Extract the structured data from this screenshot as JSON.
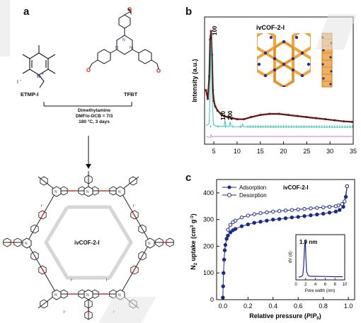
{
  "panels": {
    "a": {
      "letter": "a",
      "reactant_left": "ETMP-I",
      "reactant_right": "TFBT",
      "iodide": "I",
      "conditions": [
        "Dimethylamine",
        "DMF/o-DCB = 7/3",
        "180 °C, 3 days"
      ],
      "product_label": "ivCOF-2-I"
    },
    "b": {
      "letter": "b",
      "inset_title": "ivCOF-2-I",
      "peak_labels": [
        "100",
        "110",
        "200"
      ]
    },
    "c": {
      "letter": "c",
      "inset_title": "ivCOF-2-I",
      "inset_annotation": "1.9 nm"
    }
  },
  "chart_data": [
    {
      "type": "line",
      "panel": "b",
      "xlabel": "",
      "ylabel": "Intensity (a.u.)",
      "xlim": [
        3,
        35
      ],
      "xticks": [
        5,
        10,
        15,
        20,
        25,
        30,
        35
      ],
      "grid": false,
      "series": [
        {
          "color": "#8b1a1a",
          "x": [
            3.3,
            3.7,
            4.0,
            4.2,
            4.4,
            4.6,
            4.8,
            5.0,
            5.3,
            5.8,
            6.5,
            7.2,
            8.0,
            9.0,
            10.0,
            11.5,
            13.0,
            15.0,
            17.0,
            19.0,
            21.0,
            23.0,
            25.0,
            27.0,
            29.0,
            31.0,
            33.0,
            34.8
          ],
          "y": [
            0.45,
            0.37,
            0.58,
            0.92,
            1.0,
            0.78,
            0.45,
            0.35,
            0.3,
            0.26,
            0.23,
            0.21,
            0.2,
            0.19,
            0.18,
            0.18,
            0.2,
            0.22,
            0.23,
            0.23,
            0.22,
            0.21,
            0.2,
            0.19,
            0.18,
            0.17,
            0.16,
            0.155
          ]
        },
        {
          "color": "#222222",
          "x": [
            3.3,
            3.7,
            4.0,
            4.2,
            4.4,
            4.6,
            4.8,
            5.0,
            5.3,
            5.8,
            6.5,
            7.2,
            8.0,
            9.0,
            10.0,
            11.5,
            13.0,
            15.0,
            17.0,
            19.0,
            21.0,
            23.0,
            25.0,
            27.0,
            29.0,
            31.0,
            33.0,
            34.8
          ],
          "y": [
            0.44,
            0.36,
            0.56,
            0.9,
            0.99,
            0.77,
            0.44,
            0.34,
            0.29,
            0.255,
            0.225,
            0.205,
            0.195,
            0.185,
            0.178,
            0.178,
            0.195,
            0.215,
            0.225,
            0.225,
            0.215,
            0.205,
            0.195,
            0.185,
            0.178,
            0.168,
            0.158,
            0.152
          ]
        },
        {
          "color": "#2bbcb0",
          "x": [
            3.3,
            4.0,
            4.2,
            4.4,
            4.6,
            4.9,
            5.5,
            6.5,
            7.2,
            7.4,
            7.6,
            8.3,
            8.5,
            8.7,
            10.0,
            11.0,
            11.2,
            11.4,
            13.0,
            16.0,
            20.0,
            25.0,
            30.0,
            34.8
          ],
          "y": [
            0.12,
            0.14,
            0.5,
            0.92,
            0.45,
            0.13,
            0.115,
            0.112,
            0.112,
            0.17,
            0.112,
            0.112,
            0.155,
            0.112,
            0.11,
            0.11,
            0.135,
            0.11,
            0.109,
            0.108,
            0.107,
            0.107,
            0.106,
            0.106
          ]
        },
        {
          "color": "#c080d0",
          "x": [
            3.3,
            4.2,
            4.4,
            4.6,
            5.0,
            10.0,
            20.0,
            34.8
          ],
          "y": [
            0.02,
            0.01,
            0.035,
            0.015,
            0.02,
            0.02,
            0.02,
            0.02
          ]
        }
      ]
    },
    {
      "type": "line",
      "panel": "c",
      "xlabel": "Relative pressure (P/P0)",
      "ylabel": "N2 uptake (cm3 g-1)",
      "xlim": [
        -0.05,
        1.05
      ],
      "ylim": [
        0,
        450
      ],
      "xticks": [
        0.0,
        0.2,
        0.4,
        0.6,
        0.8,
        1.0
      ],
      "yticks": [
        0,
        100,
        200,
        300,
        400
      ],
      "grid": false,
      "legend_position": "top-left",
      "series": [
        {
          "name": "Adsorption",
          "color": "#1c2a8c",
          "marker": "filled-circle",
          "x": [
            0.0,
            0.002,
            0.005,
            0.01,
            0.015,
            0.02,
            0.03,
            0.04,
            0.06,
            0.08,
            0.1,
            0.15,
            0.2,
            0.25,
            0.3,
            0.35,
            0.4,
            0.45,
            0.5,
            0.55,
            0.6,
            0.65,
            0.7,
            0.75,
            0.8,
            0.85,
            0.9,
            0.93,
            0.96,
            0.98,
            0.99
          ],
          "y": [
            8,
            50,
            100,
            150,
            185,
            205,
            228,
            240,
            252,
            260,
            265,
            275,
            282,
            288,
            292,
            296,
            300,
            302,
            305,
            308,
            310,
            313,
            316,
            319,
            322,
            326,
            330,
            336,
            348,
            385,
            425
          ]
        },
        {
          "name": "Desorption",
          "color": "#1c2a8c",
          "marker": "open-circle",
          "x": [
            0.99,
            0.97,
            0.95,
            0.92,
            0.9,
            0.85,
            0.8,
            0.75,
            0.7,
            0.65,
            0.6,
            0.55,
            0.5,
            0.45,
            0.4,
            0.35,
            0.3,
            0.25,
            0.2,
            0.15,
            0.1,
            0.08,
            0.06,
            0.04
          ],
          "y": [
            425,
            368,
            358,
            353,
            350,
            348,
            346,
            344,
            342,
            340,
            338,
            336,
            334,
            332,
            330,
            327,
            324,
            320,
            315,
            308,
            296,
            290,
            280,
            262
          ]
        }
      ]
    },
    {
      "type": "line",
      "panel": "c-inset",
      "xlabel": "Pore width (nm)",
      "ylabel": "dV (d)",
      "xlim": [
        0,
        10
      ],
      "xticks": [
        0,
        2,
        4,
        6,
        8,
        10
      ],
      "grid": false,
      "series": [
        {
          "color": "#1c2a8c",
          "x": [
            0.6,
            1.0,
            1.4,
            1.6,
            1.75,
            1.85,
            1.9,
            1.95,
            2.05,
            2.2,
            2.5,
            3.0,
            4.0,
            6.0,
            8.0,
            9.6
          ],
          "y": [
            0.0,
            0.01,
            0.05,
            0.3,
            0.75,
            0.97,
            1.0,
            0.92,
            0.55,
            0.15,
            0.04,
            0.02,
            0.02,
            0.015,
            0.01,
            0.01
          ]
        }
      ]
    }
  ]
}
